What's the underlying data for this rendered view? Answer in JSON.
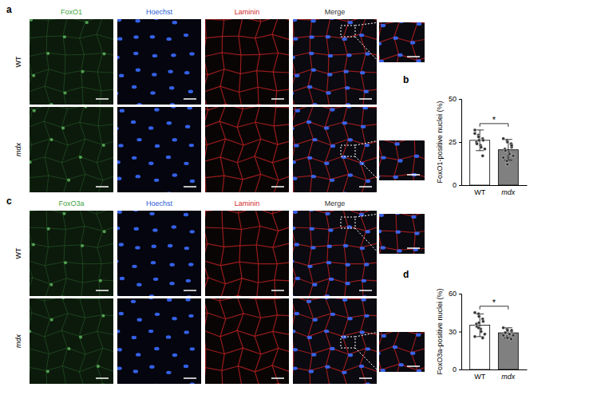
{
  "figure": {
    "panels": [
      {
        "label": "a",
        "channels": [
          "FoxO1",
          "Hoechst",
          "Laminin",
          "Merge"
        ],
        "rows": [
          "WT",
          "mdx"
        ]
      },
      {
        "label": "c",
        "channels": [
          "FoxO3a",
          "Hoechst",
          "Laminin",
          "Merge"
        ],
        "rows": [
          "WT",
          "mdx"
        ]
      }
    ],
    "chart_panel_labels": [
      "b",
      "d"
    ]
  },
  "chart_data": [
    {
      "type": "bar",
      "categories": [
        "WT",
        "mdx"
      ],
      "values": [
        26,
        20.5
      ],
      "errors": [
        6,
        6
      ],
      "points": [
        [
          30,
          29,
          28,
          27,
          26,
          25,
          24,
          23,
          22,
          21,
          32,
          28,
          26,
          17
        ],
        [
          27,
          26,
          25,
          24,
          22,
          21,
          20,
          19,
          18,
          17,
          16,
          14,
          12,
          24,
          23
        ]
      ],
      "colors": [
        "#ffffff",
        "#808080"
      ],
      "y_label": "FoxO1-positive nuclei (%)",
      "ylim": [
        0,
        50
      ],
      "yticks": [
        0,
        25,
        50
      ],
      "annotations": [
        "*"
      ]
    },
    {
      "type": "bar",
      "categories": [
        "WT",
        "mdx"
      ],
      "values": [
        35,
        29
      ],
      "errors": [
        9,
        4
      ],
      "points": [
        [
          45,
          44,
          42,
          40,
          38,
          36,
          34,
          32,
          30,
          28,
          26,
          33,
          37,
          25
        ],
        [
          33,
          32,
          31,
          30,
          30,
          29,
          29,
          28,
          28,
          27,
          27,
          26,
          25,
          24,
          31
        ]
      ],
      "colors": [
        "#ffffff",
        "#808080"
      ],
      "y_label": "FoxO3a-positive nuclei (%)",
      "ylim": [
        0,
        60
      ],
      "yticks": [
        0,
        30,
        60
      ],
      "annotations": [
        "*"
      ]
    }
  ]
}
